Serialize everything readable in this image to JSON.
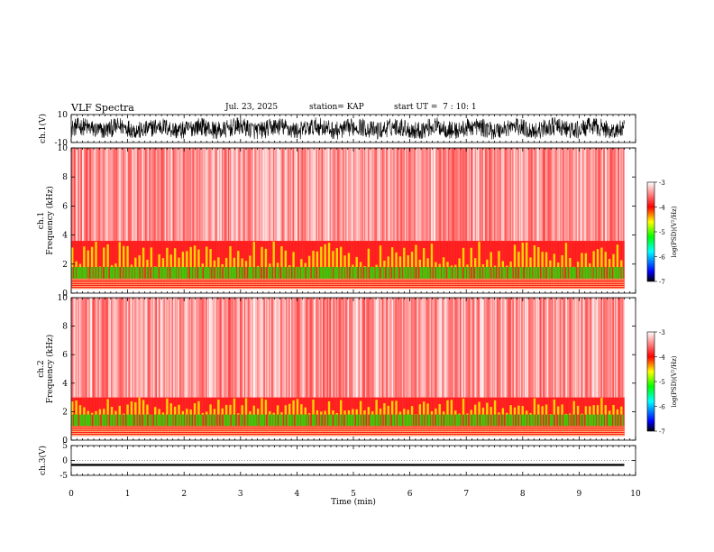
{
  "chart_data": {
    "type": "heatmap",
    "title": "VLF Spectra",
    "date": "Jul. 23, 2025",
    "station": "station= KAP",
    "start_ut": "start UT =  7 : 10: 1",
    "xlabel": "Time (min)",
    "xlim": [
      0,
      10
    ],
    "x_ticks": [
      "0",
      "1",
      "2",
      "3",
      "4",
      "5",
      "6",
      "7",
      "8",
      "9",
      "10"
    ],
    "x_minor_step": 0.1,
    "data_end_min": 9.8,
    "panels": [
      {
        "id": "ch1-waveform",
        "type": "line",
        "ylabel": "ch.1(V)",
        "ylim": [
          -10,
          10
        ],
        "y_ticks": [
          "10",
          "-10"
        ],
        "amplitude": 6.5
      },
      {
        "id": "ch1-spectrogram",
        "type": "heatmap",
        "ylabel_top": "ch.1",
        "ylabel": "Frequency (kHz)",
        "ylim": [
          0,
          10
        ],
        "y_ticks": [
          "0",
          "2",
          "4",
          "6",
          "8",
          "10"
        ],
        "colorbar": {
          "label": "log(PSD)(V²/Hz)",
          "range": [
            -7,
            -3
          ],
          "ticks": [
            "-3",
            "-4",
            "-5",
            "-6",
            "-7"
          ]
        },
        "bands_khz": {
          "green_low": 1.0,
          "green_high": 1.8,
          "yellow_high": 3.6,
          "dead_below": 0.3
        }
      },
      {
        "id": "ch2-spectrogram",
        "type": "heatmap",
        "ylabel_top": "ch.2",
        "ylabel": "Frequency (kHz)",
        "ylim": [
          0,
          10
        ],
        "y_ticks": [
          "0",
          "2",
          "4",
          "6",
          "8",
          "10"
        ],
        "colorbar": {
          "label": "log(PSD)(V²/Hz)",
          "range": [
            -7,
            -3
          ],
          "ticks": [
            "-3",
            "-4",
            "-5",
            "-6",
            "-7"
          ]
        },
        "bands_khz": {
          "green_low": 1.0,
          "green_high": 1.8,
          "yellow_high": 3.0,
          "dead_below": 0.3
        }
      },
      {
        "id": "ch3-waveform",
        "type": "line",
        "ylabel": "ch.3(V)",
        "ylim": [
          -5,
          5
        ],
        "y_ticks": [
          "5",
          "0",
          "-5"
        ],
        "level": -1.5,
        "amplitude": 0.35
      }
    ]
  },
  "colors": {
    "spectrogram_white": "#ffffff",
    "spectrogram_red": "#ff0000",
    "spectrogram_yellow": "#ffff00",
    "spectrogram_green": "#00ff00",
    "waveform": "#000000"
  }
}
